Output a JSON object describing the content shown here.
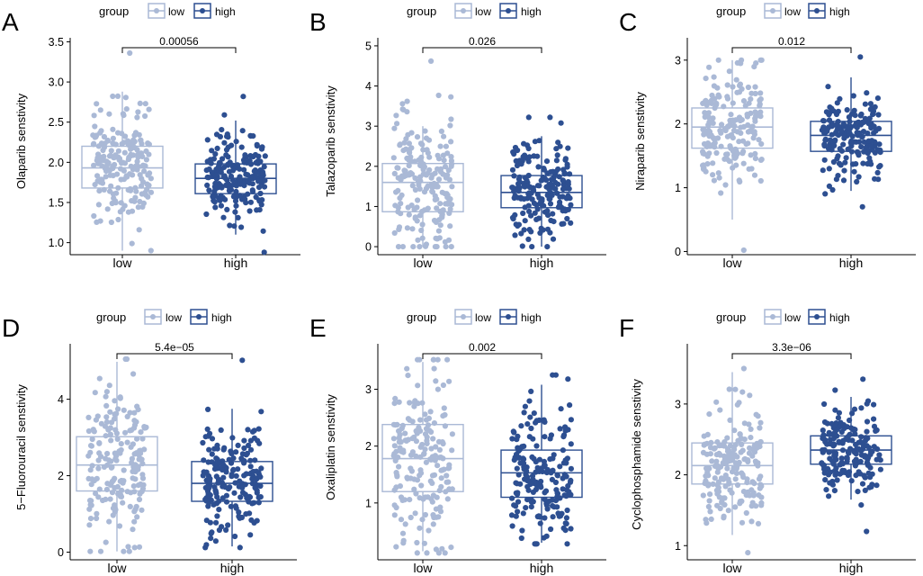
{
  "colors": {
    "low": "#aab9d6",
    "high": "#2d4f91",
    "axis": "#000000"
  },
  "chart_data": [
    {
      "type": "boxplot",
      "panel_label": "A",
      "legend_title": "group",
      "legend_low": "low",
      "legend_high": "high",
      "categories": [
        "low",
        "high"
      ],
      "ylabel": "Olaparib senstivity",
      "ylim": [
        0.85,
        3.55
      ],
      "yticks": [
        1.0,
        1.5,
        2.0,
        2.5,
        3.0,
        3.5
      ],
      "ytick_labels": [
        "1.0",
        "1.5",
        "2.0",
        "2.5",
        "3.0",
        "3.5"
      ],
      "p_value": "0.00056",
      "boxes": [
        {
          "group": "low",
          "q1": 1.68,
          "median": 1.93,
          "q3": 2.2,
          "whisker_low": 0.9,
          "whisker_high": 2.88,
          "point_min": 0.9,
          "point_max": 3.36
        },
        {
          "group": "high",
          "q1": 1.61,
          "median": 1.8,
          "q3": 1.98,
          "whisker_low": 1.1,
          "whisker_high": 2.52,
          "point_min": 0.88,
          "point_max": 2.82
        }
      ]
    },
    {
      "type": "boxplot",
      "panel_label": "B",
      "legend_title": "group",
      "legend_low": "low",
      "legend_high": "high",
      "categories": [
        "low",
        "high"
      ],
      "ylabel": "Talazoparib senstivity",
      "ylim": [
        -0.2,
        5.2
      ],
      "yticks": [
        0,
        1,
        2,
        3,
        4,
        5
      ],
      "ytick_labels": [
        "0",
        "1",
        "2",
        "3",
        "4",
        "5"
      ],
      "p_value": "0.026",
      "boxes": [
        {
          "group": "low",
          "q1": 0.87,
          "median": 1.6,
          "q3": 2.07,
          "whisker_low": 0.0,
          "whisker_high": 3.0,
          "point_min": 0.0,
          "point_max": 4.62
        },
        {
          "group": "high",
          "q1": 0.97,
          "median": 1.35,
          "q3": 1.77,
          "whisker_low": 0.0,
          "whisker_high": 2.75,
          "point_min": 0.0,
          "point_max": 3.22
        }
      ]
    },
    {
      "type": "boxplot",
      "panel_label": "C",
      "legend_title": "group",
      "legend_low": "low",
      "legend_high": "high",
      "categories": [
        "low",
        "high"
      ],
      "ylabel": "Niraparib senstivity",
      "ylim": [
        -0.05,
        3.35
      ],
      "yticks": [
        0,
        1,
        2,
        3
      ],
      "ytick_labels": [
        "0",
        "1",
        "2",
        "3"
      ],
      "p_value": "0.012",
      "boxes": [
        {
          "group": "low",
          "q1": 1.62,
          "median": 1.95,
          "q3": 2.25,
          "whisker_low": 0.5,
          "whisker_high": 3.0,
          "point_min": 0.02,
          "point_max": 3.0
        },
        {
          "group": "high",
          "q1": 1.57,
          "median": 1.82,
          "q3": 2.04,
          "whisker_low": 0.95,
          "whisker_high": 2.73,
          "point_min": 0.7,
          "point_max": 3.05
        }
      ]
    },
    {
      "type": "boxplot",
      "panel_label": "D",
      "legend_title": "group",
      "legend_low": "low",
      "legend_high": "high",
      "categories": [
        "low",
        "high"
      ],
      "ylabel": "5−Fluorouracil senstivity",
      "ylim": [
        -0.2,
        5.45
      ],
      "yticks": [
        0,
        2,
        4
      ],
      "ytick_labels": [
        "0",
        "2",
        "4"
      ],
      "p_value": "5.4e−05",
      "boxes": [
        {
          "group": "low",
          "q1": 1.6,
          "median": 2.28,
          "q3": 3.02,
          "whisker_low": 0.02,
          "whisker_high": 4.98,
          "point_min": 0.02,
          "point_max": 5.05
        },
        {
          "group": "high",
          "q1": 1.33,
          "median": 1.8,
          "q3": 2.37,
          "whisker_low": 0.15,
          "whisker_high": 3.75,
          "point_min": 0.12,
          "point_max": 5.02
        }
      ]
    },
    {
      "type": "boxplot",
      "panel_label": "E",
      "legend_title": "group",
      "legend_low": "low",
      "legend_high": "high",
      "categories": [
        "low",
        "high"
      ],
      "ylabel": "Oxaliplatin senstivity",
      "ylim": [
        0.0,
        3.8
      ],
      "yticks": [
        1,
        2,
        3
      ],
      "ytick_labels": [
        "1",
        "2",
        "3"
      ],
      "p_value": "0.002",
      "boxes": [
        {
          "group": "low",
          "q1": 1.2,
          "median": 1.78,
          "q3": 2.38,
          "whisker_low": 0.15,
          "whisker_high": 3.48,
          "point_min": 0.12,
          "point_max": 3.52
        },
        {
          "group": "high",
          "q1": 1.1,
          "median": 1.53,
          "q3": 1.93,
          "whisker_low": 0.3,
          "whisker_high": 3.08,
          "point_min": 0.28,
          "point_max": 3.25
        }
      ]
    },
    {
      "type": "boxplot",
      "panel_label": "F",
      "legend_title": "group",
      "legend_low": "low",
      "legend_high": "high",
      "categories": [
        "low",
        "high"
      ],
      "ylabel": "Cyclophosphamide senstivity",
      "ylim": [
        0.8,
        3.85
      ],
      "yticks": [
        1,
        2,
        3
      ],
      "ytick_labels": [
        "1",
        "2",
        "3"
      ],
      "p_value": "3.3e−06",
      "boxes": [
        {
          "group": "low",
          "q1": 1.87,
          "median": 2.13,
          "q3": 2.45,
          "whisker_low": 1.15,
          "whisker_high": 3.45,
          "point_min": 0.9,
          "point_max": 3.5
        },
        {
          "group": "high",
          "q1": 2.15,
          "median": 2.35,
          "q3": 2.55,
          "whisker_low": 1.65,
          "whisker_high": 3.1,
          "point_min": 1.2,
          "point_max": 3.35
        }
      ]
    }
  ]
}
